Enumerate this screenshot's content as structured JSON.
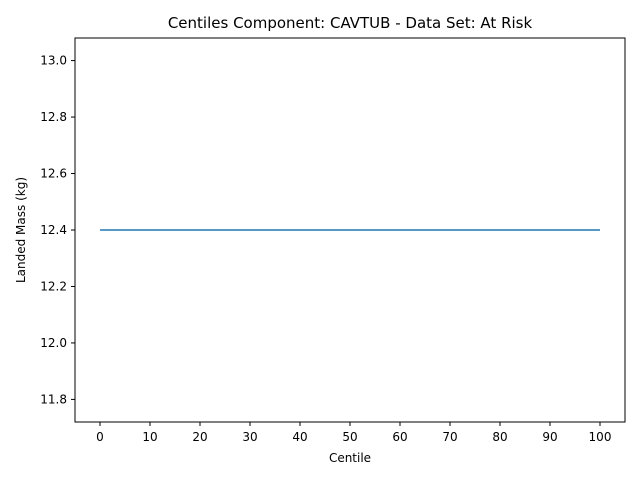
{
  "chart_data": {
    "type": "line",
    "title": "Centiles Component: CAVTUB - Data Set: At Risk",
    "xlabel": "Centile",
    "ylabel": "Landed Mass (kg)",
    "xlim": [
      -5,
      105
    ],
    "ylim": [
      11.72,
      13.08
    ],
    "xticks": [
      0,
      10,
      20,
      30,
      40,
      50,
      60,
      70,
      80,
      90,
      100
    ],
    "yticks": [
      11.8,
      12.0,
      12.2,
      12.4,
      12.6,
      12.8,
      13.0
    ],
    "grid": false,
    "series": [
      {
        "x": [
          0,
          100
        ],
        "y": [
          12.4,
          12.4
        ],
        "color": "#1f77b4"
      }
    ]
  }
}
